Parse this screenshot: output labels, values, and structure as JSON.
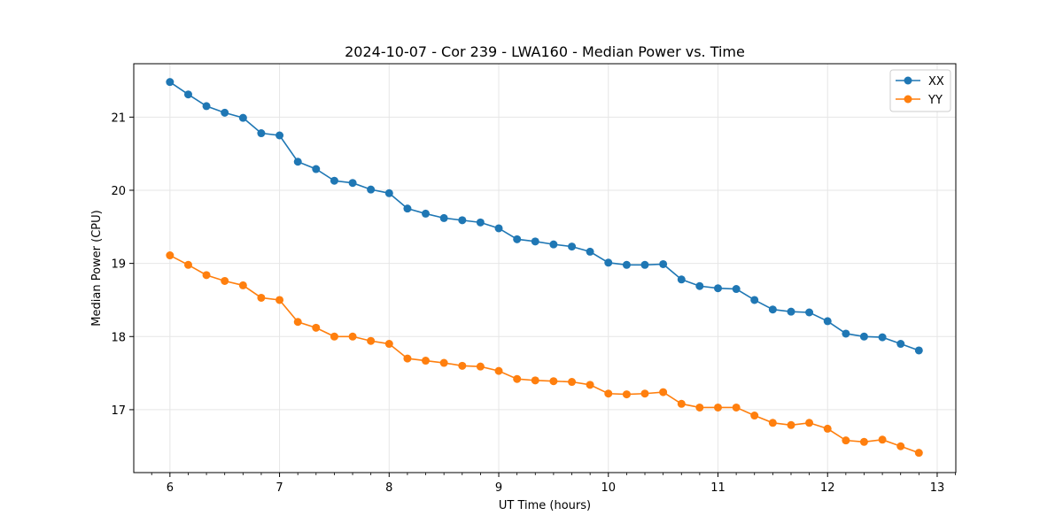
{
  "chart_data": {
    "type": "line",
    "title": "2024-10-07 - Cor 239 - LWA160 - Median Power vs. Time",
    "xlabel": "UT Time (hours)",
    "ylabel": "Median Power (CPU)",
    "xlim": [
      5.67,
      13.17
    ],
    "ylim": [
      16.14,
      21.73
    ],
    "xticks": [
      6,
      7,
      8,
      9,
      10,
      11,
      12,
      13
    ],
    "yticks": [
      17,
      18,
      19,
      20,
      21
    ],
    "grid": true,
    "legend_position": "top-right",
    "x": [
      6.0,
      6.167,
      6.333,
      6.5,
      6.667,
      6.833,
      7.0,
      7.167,
      7.333,
      7.5,
      7.667,
      7.833,
      8.0,
      8.167,
      8.333,
      8.5,
      8.667,
      8.833,
      9.0,
      9.167,
      9.333,
      9.5,
      9.667,
      9.833,
      10.0,
      10.167,
      10.333,
      10.5,
      10.667,
      10.833,
      11.0,
      11.167,
      11.333,
      11.5,
      11.667,
      11.833,
      12.0,
      12.167,
      12.333,
      12.5,
      12.667,
      12.833
    ],
    "series": [
      {
        "name": "XX",
        "color": "#1f77b4",
        "values": [
          21.48,
          21.31,
          21.15,
          21.06,
          20.99,
          20.78,
          20.75,
          20.39,
          20.29,
          20.13,
          20.1,
          20.01,
          19.96,
          19.75,
          19.68,
          19.62,
          19.59,
          19.56,
          19.48,
          19.33,
          19.3,
          19.26,
          19.23,
          19.16,
          19.01,
          18.98,
          18.98,
          18.99,
          18.78,
          18.69,
          18.66,
          18.65,
          18.5,
          18.37,
          18.34,
          18.33,
          18.21,
          18.04,
          18.0,
          17.99,
          17.9,
          17.81
        ]
      },
      {
        "name": "YY",
        "color": "#ff7f0e",
        "values": [
          19.11,
          18.98,
          18.84,
          18.76,
          18.7,
          18.53,
          18.5,
          18.2,
          18.12,
          18.0,
          18.0,
          17.94,
          17.9,
          17.7,
          17.67,
          17.64,
          17.6,
          17.59,
          17.53,
          17.42,
          17.4,
          17.39,
          17.38,
          17.34,
          17.22,
          17.21,
          17.22,
          17.24,
          17.08,
          17.03,
          17.03,
          17.03,
          16.92,
          16.82,
          16.79,
          16.82,
          16.74,
          16.58,
          16.56,
          16.59,
          16.5,
          16.41
        ]
      }
    ]
  }
}
